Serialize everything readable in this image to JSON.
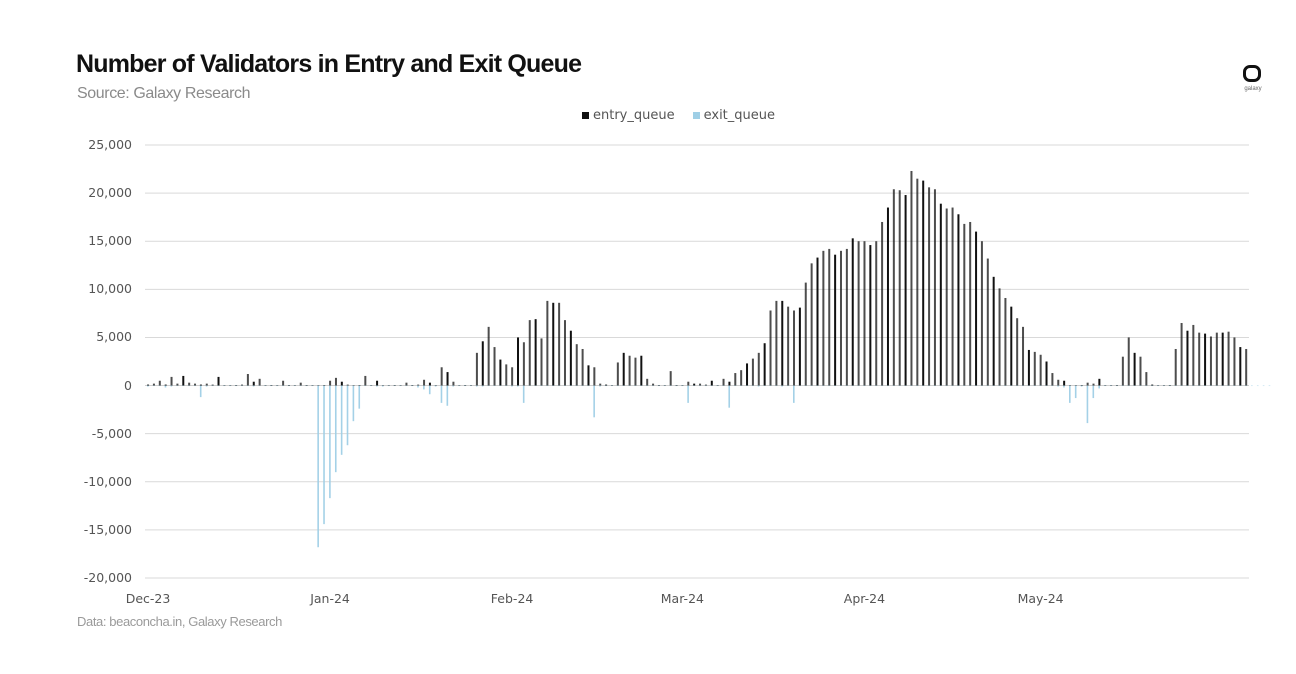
{
  "header": {
    "title": "Number of Validators in Entry and Exit Queue",
    "subtitle": "Source: Galaxy Research"
  },
  "logo": {
    "text": "galaxy"
  },
  "footer": {
    "note": "Data: beaconcha.in, Galaxy Research"
  },
  "colors": {
    "entry": "#111111",
    "exit": "#9fcfe6",
    "grid": "#d9d9d9",
    "axis_text": "#555555"
  },
  "chart_data": {
    "type": "bar",
    "title": "Number of Validators in Entry and Exit Queue",
    "subtitle": "Source: Galaxy Research",
    "xlabel": "",
    "ylabel": "",
    "ylim": [
      -20000,
      25000
    ],
    "yticks": [
      25000,
      20000,
      15000,
      10000,
      5000,
      0,
      -5000,
      -10000,
      -15000,
      -20000
    ],
    "ytick_labels": [
      "25,000",
      "20,000",
      "15,000",
      "10,000",
      "5,000",
      "0",
      "-5,000",
      "-10,000",
      "-15,000",
      "-20,000"
    ],
    "xtick_labels": [
      "Dec-23",
      "Jan-24",
      "Feb-24",
      "Mar-24",
      "Apr-24",
      "May-24"
    ],
    "xtick_day_index": [
      0,
      31,
      62,
      91,
      122,
      152
    ],
    "grid": true,
    "legend_position": "top",
    "legend": [
      "entry_queue",
      "exit_queue"
    ],
    "x_start": "2023-12-01",
    "series": [
      {
        "name": "entry_queue",
        "values": [
          100,
          200,
          500,
          100,
          900,
          200,
          1000,
          300,
          200,
          100,
          200,
          100,
          900,
          50,
          50,
          50,
          100,
          1200,
          400,
          700,
          50,
          50,
          50,
          500,
          50,
          50,
          300,
          50,
          50,
          50,
          50,
          500,
          800,
          400,
          100,
          50,
          50,
          1000,
          50,
          500,
          50,
          50,
          50,
          50,
          300,
          50,
          100,
          600,
          300,
          50,
          1900,
          1400,
          400,
          50,
          50,
          50,
          3400,
          4600,
          6100,
          4000,
          2700,
          2200,
          1900,
          5000,
          4500,
          6800,
          6900,
          4900,
          8800,
          8600,
          8600,
          6800,
          5700,
          4300,
          3800,
          2100,
          1900,
          200,
          100,
          50,
          2400,
          3400,
          3100,
          2900,
          3100,
          700,
          200,
          50,
          50,
          1500,
          50,
          50,
          400,
          200,
          200,
          100,
          500,
          50,
          700,
          400,
          1300,
          1600,
          2300,
          2800,
          3400,
          4400,
          7800,
          8800,
          8800,
          8200,
          7800,
          8100,
          10700,
          12700,
          13300,
          14000,
          14200,
          13600,
          14000,
          14200,
          15300,
          15000,
          15000,
          14600,
          15000,
          17000,
          18500,
          20400,
          20300,
          19800,
          22300,
          21500,
          21300,
          20600,
          20400,
          18900,
          18400,
          18500,
          17800,
          16800,
          17000,
          16000,
          15000,
          13200,
          11300,
          10100,
          9100,
          8200,
          7000,
          6100,
          3700,
          3500,
          3200,
          2500,
          1300,
          600,
          500,
          50,
          50,
          50,
          300,
          200,
          700,
          50,
          50,
          50,
          3000,
          5000,
          3400,
          3000,
          1400,
          100,
          50,
          50,
          50,
          3800,
          6500,
          5700,
          6300,
          5500,
          5400,
          5100,
          5500,
          5500,
          5600,
          5000,
          4000,
          3800
        ]
      },
      {
        "name": "exit_queue",
        "values": [
          -100,
          -50,
          -50,
          -200,
          -100,
          -50,
          -50,
          -50,
          -50,
          -1200,
          -100,
          -50,
          -50,
          -50,
          -50,
          -50,
          -50,
          -50,
          -100,
          -50,
          -50,
          -50,
          -50,
          -50,
          -50,
          -50,
          -50,
          -50,
          -50,
          -16800,
          -14400,
          -11700,
          -9000,
          -7200,
          -6200,
          -3700,
          -2400,
          -50,
          -50,
          -100,
          -100,
          -50,
          -50,
          -50,
          -50,
          -50,
          -200,
          -400,
          -900,
          -100,
          -1800,
          -2100,
          -100,
          -50,
          -50,
          -50,
          -100,
          -100,
          -50,
          -50,
          -50,
          -50,
          -100,
          -100,
          -1800,
          -50,
          -50,
          -50,
          -50,
          -50,
          -50,
          -50,
          -50,
          -50,
          -50,
          -50,
          -3300,
          -100,
          -50,
          -50,
          -50,
          -50,
          -50,
          -50,
          -50,
          -50,
          -50,
          -50,
          -50,
          -50,
          -50,
          -50,
          -1800,
          -50,
          -50,
          -50,
          -50,
          -50,
          -50,
          -2300,
          -50,
          -50,
          -50,
          -50,
          -100,
          -50,
          -50,
          -50,
          -100,
          -50,
          -1800,
          -50,
          -50,
          -50,
          -50,
          -50,
          -50,
          -50,
          -50,
          -50,
          -50,
          -50,
          -50,
          -50,
          -50,
          -50,
          -50,
          -50,
          -50,
          -50,
          -50,
          -50,
          -50,
          -50,
          -50,
          -50,
          -50,
          -50,
          -50,
          -50,
          -50,
          -50,
          -50,
          -50,
          -50,
          -50,
          -50,
          -50,
          -50,
          -50,
          -50,
          -50,
          -50,
          -50,
          -50,
          -100,
          -200,
          -1800,
          -1300,
          -100,
          -3900,
          -1300,
          -300,
          -50,
          -50,
          -50,
          -50,
          -50,
          -50,
          -50,
          -50,
          -50,
          -50,
          -50,
          -50,
          -50,
          -50,
          -50,
          -50,
          -50,
          -50,
          -50,
          -50,
          -50,
          -50,
          -50,
          -50,
          -50,
          -50,
          -50,
          -50,
          -50
        ]
      }
    ]
  }
}
